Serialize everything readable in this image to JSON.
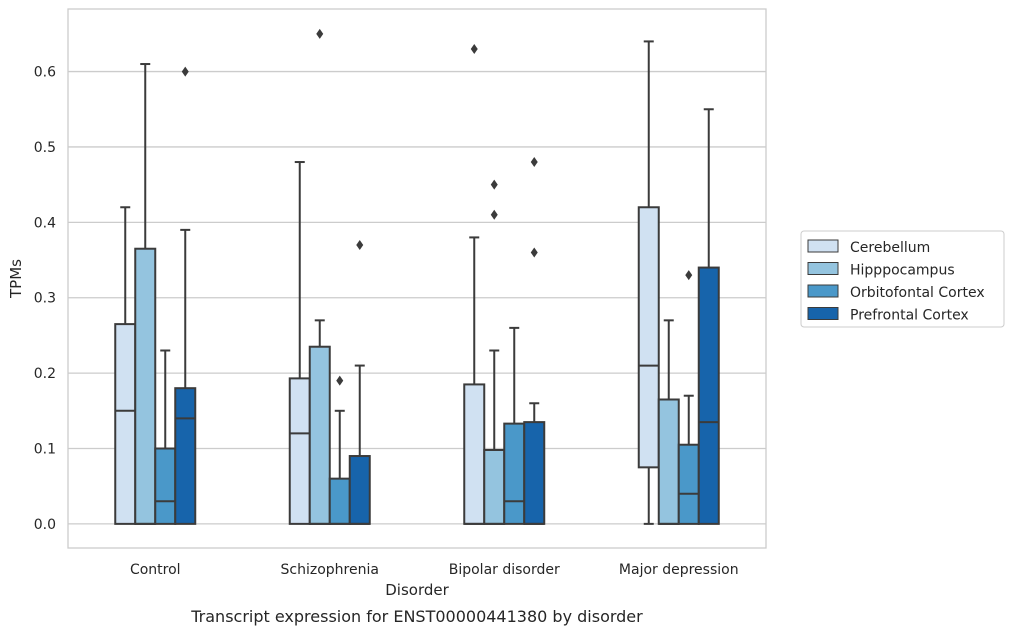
{
  "chart_data": {
    "type": "box",
    "title": "",
    "caption": "Transcript expression for ENST00000441380 by disorder",
    "xlabel": "Disorder",
    "ylabel": "TPMs",
    "ylim": [
      -0.032,
      0.683
    ],
    "yticks": [
      0.0,
      0.1,
      0.2,
      0.3,
      0.4,
      0.5,
      0.6
    ],
    "ytick_labels": [
      "0.0",
      "0.1",
      "0.2",
      "0.3",
      "0.4",
      "0.5",
      "0.6"
    ],
    "grid": "horizontal",
    "legend_position": "right",
    "categories": [
      "Control",
      "Schizophrenia",
      "Bipolar disorder",
      "Major depression"
    ],
    "series": [
      {
        "name": "Cerebellum",
        "color": "#d0e1f2",
        "boxes": [
          {
            "whislo": 0.0,
            "q1": 0.0,
            "med": 0.15,
            "q3": 0.265,
            "whishi": 0.42,
            "fliers": []
          },
          {
            "whislo": 0.0,
            "q1": 0.0,
            "med": 0.12,
            "q3": 0.193,
            "whishi": 0.48,
            "fliers": []
          },
          {
            "whislo": 0.0,
            "q1": 0.0,
            "med": 0.0,
            "q3": 0.185,
            "whishi": 0.38,
            "fliers": [
              0.63
            ]
          },
          {
            "whislo": 0.0,
            "q1": 0.075,
            "med": 0.21,
            "q3": 0.42,
            "whishi": 0.64,
            "fliers": []
          }
        ]
      },
      {
        "name": "Hipppocampus",
        "color": "#94c4df",
        "boxes": [
          {
            "whislo": 0.0,
            "q1": 0.0,
            "med": 0.0,
            "q3": 0.365,
            "whishi": 0.61,
            "fliers": []
          },
          {
            "whislo": 0.0,
            "q1": 0.0,
            "med": 0.0,
            "q3": 0.235,
            "whishi": 0.27,
            "fliers": [
              0.65
            ]
          },
          {
            "whislo": 0.0,
            "q1": 0.0,
            "med": 0.0,
            "q3": 0.098,
            "whishi": 0.23,
            "fliers": [
              0.41,
              0.45
            ]
          },
          {
            "whislo": 0.0,
            "q1": 0.0,
            "med": 0.0,
            "q3": 0.165,
            "whishi": 0.27,
            "fliers": []
          }
        ]
      },
      {
        "name": "Orbitofontal Cortex",
        "color": "#4a98c9",
        "boxes": [
          {
            "whislo": 0.0,
            "q1": 0.0,
            "med": 0.03,
            "q3": 0.1,
            "whishi": 0.23,
            "fliers": []
          },
          {
            "whislo": 0.0,
            "q1": 0.0,
            "med": 0.0,
            "q3": 0.06,
            "whishi": 0.15,
            "fliers": [
              0.19
            ]
          },
          {
            "whislo": 0.0,
            "q1": 0.0,
            "med": 0.03,
            "q3": 0.133,
            "whishi": 0.26,
            "fliers": []
          },
          {
            "whislo": 0.0,
            "q1": 0.0,
            "med": 0.04,
            "q3": 0.105,
            "whishi": 0.17,
            "fliers": [
              0.33
            ]
          }
        ]
      },
      {
        "name": "Prefrontal Cortex",
        "color": "#1764ab",
        "boxes": [
          {
            "whislo": 0.0,
            "q1": 0.0,
            "med": 0.14,
            "q3": 0.18,
            "whishi": 0.39,
            "fliers": [
              0.6
            ]
          },
          {
            "whislo": 0.0,
            "q1": 0.0,
            "med": 0.0,
            "q3": 0.09,
            "whishi": 0.21,
            "fliers": [
              0.37
            ]
          },
          {
            "whislo": 0.0,
            "q1": 0.0,
            "med": 0.0,
            "q3": 0.135,
            "whishi": 0.16,
            "fliers": [
              0.36,
              0.48
            ]
          },
          {
            "whislo": 0.0,
            "q1": 0.0,
            "med": 0.135,
            "q3": 0.34,
            "whishi": 0.55,
            "fliers": []
          }
        ]
      }
    ],
    "colors": {
      "box_edge": "#3b3b3b",
      "grid": "#cccccc",
      "frame": "#cccccc",
      "text": "#262626"
    }
  }
}
